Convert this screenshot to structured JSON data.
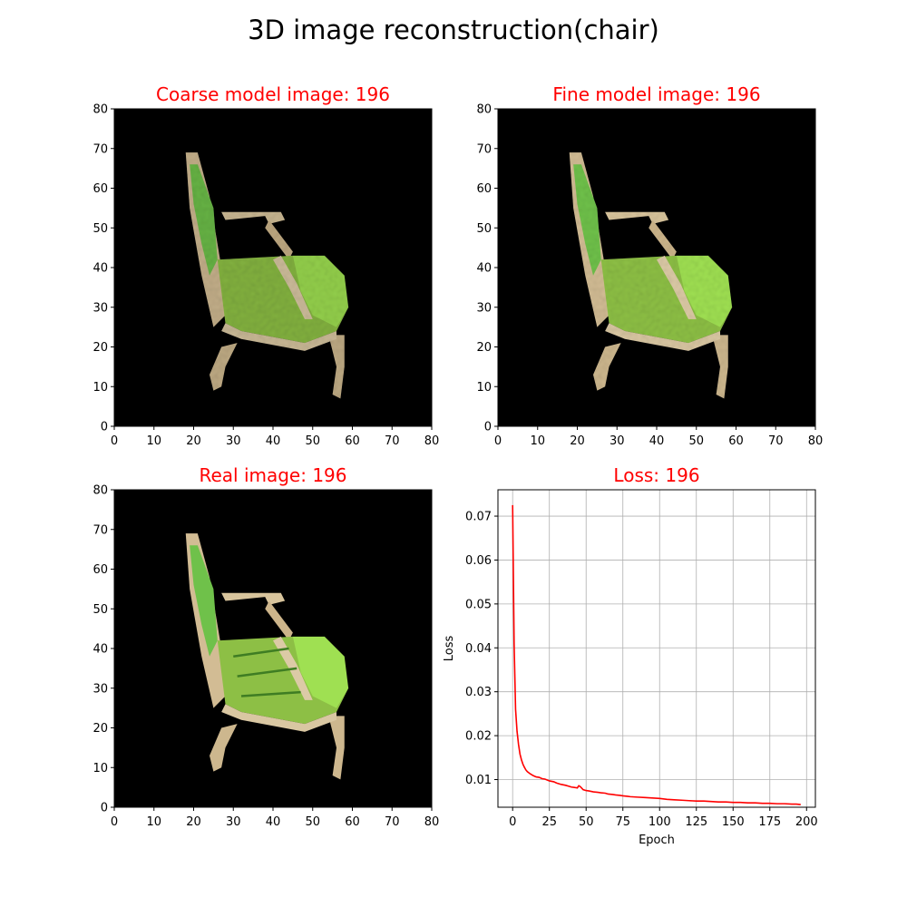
{
  "figure": {
    "title": "3D image reconstruction(chair)"
  },
  "chart_data": [
    {
      "type": "image",
      "title": "Coarse model image: 196",
      "title_color": "#ff0000",
      "xlim": [
        0,
        80
      ],
      "ylim": [
        0,
        80
      ],
      "xticks": [
        "0",
        "10",
        "20",
        "30",
        "40",
        "50",
        "60",
        "70",
        "80"
      ],
      "yticks": [
        "0",
        "10",
        "20",
        "30",
        "40",
        "50",
        "60",
        "70",
        "80"
      ],
      "content": "armchair-reconstruction-blurry"
    },
    {
      "type": "image",
      "title": "Fine model image: 196",
      "title_color": "#ff0000",
      "xlim": [
        0,
        80
      ],
      "ylim": [
        0,
        80
      ],
      "xticks": [
        "0",
        "10",
        "20",
        "30",
        "40",
        "50",
        "60",
        "70",
        "80"
      ],
      "yticks": [
        "0",
        "10",
        "20",
        "30",
        "40",
        "50",
        "60",
        "70",
        "80"
      ],
      "content": "armchair-reconstruction-sharper"
    },
    {
      "type": "image",
      "title": "Real image: 196",
      "title_color": "#ff0000",
      "xlim": [
        0,
        80
      ],
      "ylim": [
        0,
        80
      ],
      "xticks": [
        "0",
        "10",
        "20",
        "30",
        "40",
        "50",
        "60",
        "70",
        "80"
      ],
      "yticks": [
        "0",
        "10",
        "20",
        "30",
        "40",
        "50",
        "60",
        "70",
        "80"
      ],
      "content": "armchair-ground-truth"
    },
    {
      "type": "line",
      "title": "Loss: 196",
      "title_color": "#ff0000",
      "xlabel": "Epoch",
      "ylabel": "Loss",
      "xlim": [
        -10,
        206
      ],
      "ylim": [
        0.0037,
        0.076
      ],
      "xticks": [
        0,
        25,
        50,
        75,
        100,
        125,
        150,
        175,
        200
      ],
      "yticks": [
        0.01,
        0.02,
        0.03,
        0.04,
        0.05,
        0.06,
        0.07
      ],
      "ytick_labels": [
        "0.01",
        "0.02",
        "0.03",
        "0.04",
        "0.05",
        "0.06",
        "0.07"
      ],
      "grid": true,
      "series": [
        {
          "color": "#ff0000",
          "x": [
            0,
            1,
            2,
            3,
            4,
            5,
            6,
            7,
            8,
            9,
            10,
            12,
            14,
            16,
            18,
            20,
            22,
            25,
            28,
            30,
            33,
            36,
            38,
            40,
            42,
            44,
            45,
            46,
            48,
            50,
            52,
            55,
            58,
            60,
            63,
            65,
            68,
            70,
            73,
            75,
            78,
            80,
            85,
            90,
            95,
            100,
            105,
            110,
            115,
            120,
            125,
            130,
            135,
            140,
            145,
            150,
            155,
            160,
            165,
            170,
            175,
            180,
            185,
            190,
            193,
            196
          ],
          "y": [
            0.0725,
            0.041,
            0.026,
            0.021,
            0.018,
            0.0158,
            0.0145,
            0.0135,
            0.0128,
            0.0122,
            0.0118,
            0.0113,
            0.0109,
            0.0106,
            0.0105,
            0.0102,
            0.0101,
            0.0097,
            0.0095,
            0.0092,
            0.0089,
            0.0087,
            0.0085,
            0.0083,
            0.0082,
            0.0081,
            0.0086,
            0.0084,
            0.0077,
            0.0075,
            0.0074,
            0.0072,
            0.0071,
            0.007,
            0.0069,
            0.0067,
            0.0066,
            0.0065,
            0.0064,
            0.0063,
            0.0062,
            0.0061,
            0.006,
            0.0059,
            0.0058,
            0.0057,
            0.0055,
            0.0054,
            0.0053,
            0.0052,
            0.0051,
            0.0051,
            0.005,
            0.0049,
            0.0049,
            0.0048,
            0.0048,
            0.0047,
            0.0047,
            0.0046,
            0.0046,
            0.0045,
            0.0045,
            0.0044,
            0.0044,
            0.0043
          ]
        }
      ]
    }
  ]
}
